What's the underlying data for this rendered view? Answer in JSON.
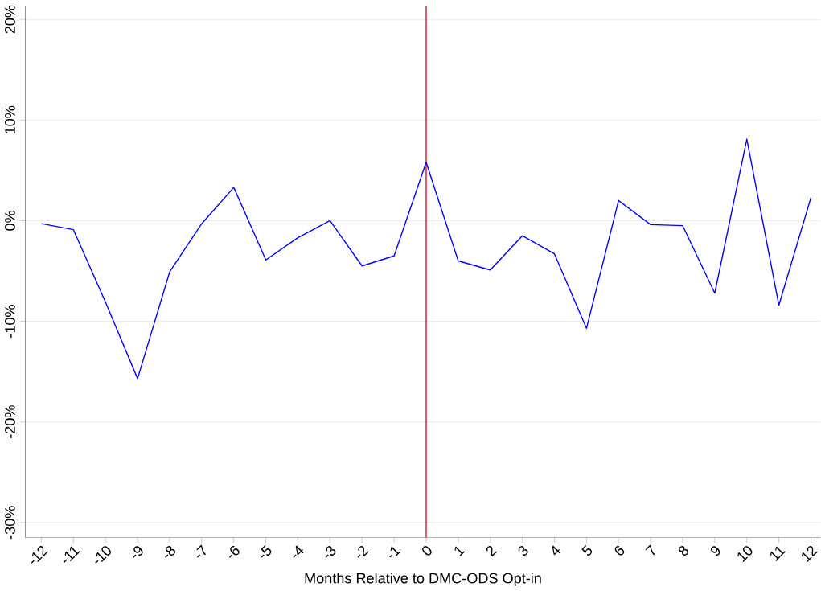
{
  "chart_data": {
    "type": "line",
    "xlabel": "Months Relative to DMC-ODS Opt-in",
    "x": [
      -12,
      -11,
      -10,
      -9,
      -8,
      -7,
      -6,
      -5,
      -4,
      -3,
      -2,
      -1,
      0,
      1,
      2,
      3,
      4,
      5,
      6,
      7,
      8,
      9,
      10,
      11,
      12
    ],
    "series": [
      {
        "color": "#0000ff",
        "values": [
          -0.3,
          -0.9,
          -8.1,
          -15.7,
          -5.1,
          -0.3,
          3.3,
          -3.9,
          -1.7,
          0,
          -4.5,
          -3.5,
          5.8,
          -4.0,
          -4.9,
          -1.5,
          -3.3,
          -10.7,
          2.0,
          -0.4,
          -0.5,
          -7.2,
          8.1,
          -8.4,
          2.3
        ]
      }
    ],
    "xlim": [
      -12.5,
      12.3
    ],
    "ylim": [
      -31.5,
      21.3
    ],
    "xticks": [
      -12,
      -11,
      -10,
      -9,
      -8,
      -7,
      -6,
      -5,
      -4,
      -3,
      -2,
      -1,
      0,
      1,
      2,
      3,
      4,
      5,
      6,
      7,
      8,
      9,
      10,
      11,
      12
    ],
    "yticks": [
      {
        "value": -30,
        "label": "-30%"
      },
      {
        "value": -20,
        "label": "-20%"
      },
      {
        "value": -10,
        "label": "-10%"
      },
      {
        "value": 0,
        "label": "0%"
      },
      {
        "value": 10,
        "label": "10%"
      },
      {
        "value": 20,
        "label": "20%"
      }
    ],
    "ref_lines": [
      {
        "axis": "x",
        "value": 0,
        "color": "#c00020"
      }
    ],
    "grid": "y",
    "marker": "none",
    "line_style": "solid"
  }
}
